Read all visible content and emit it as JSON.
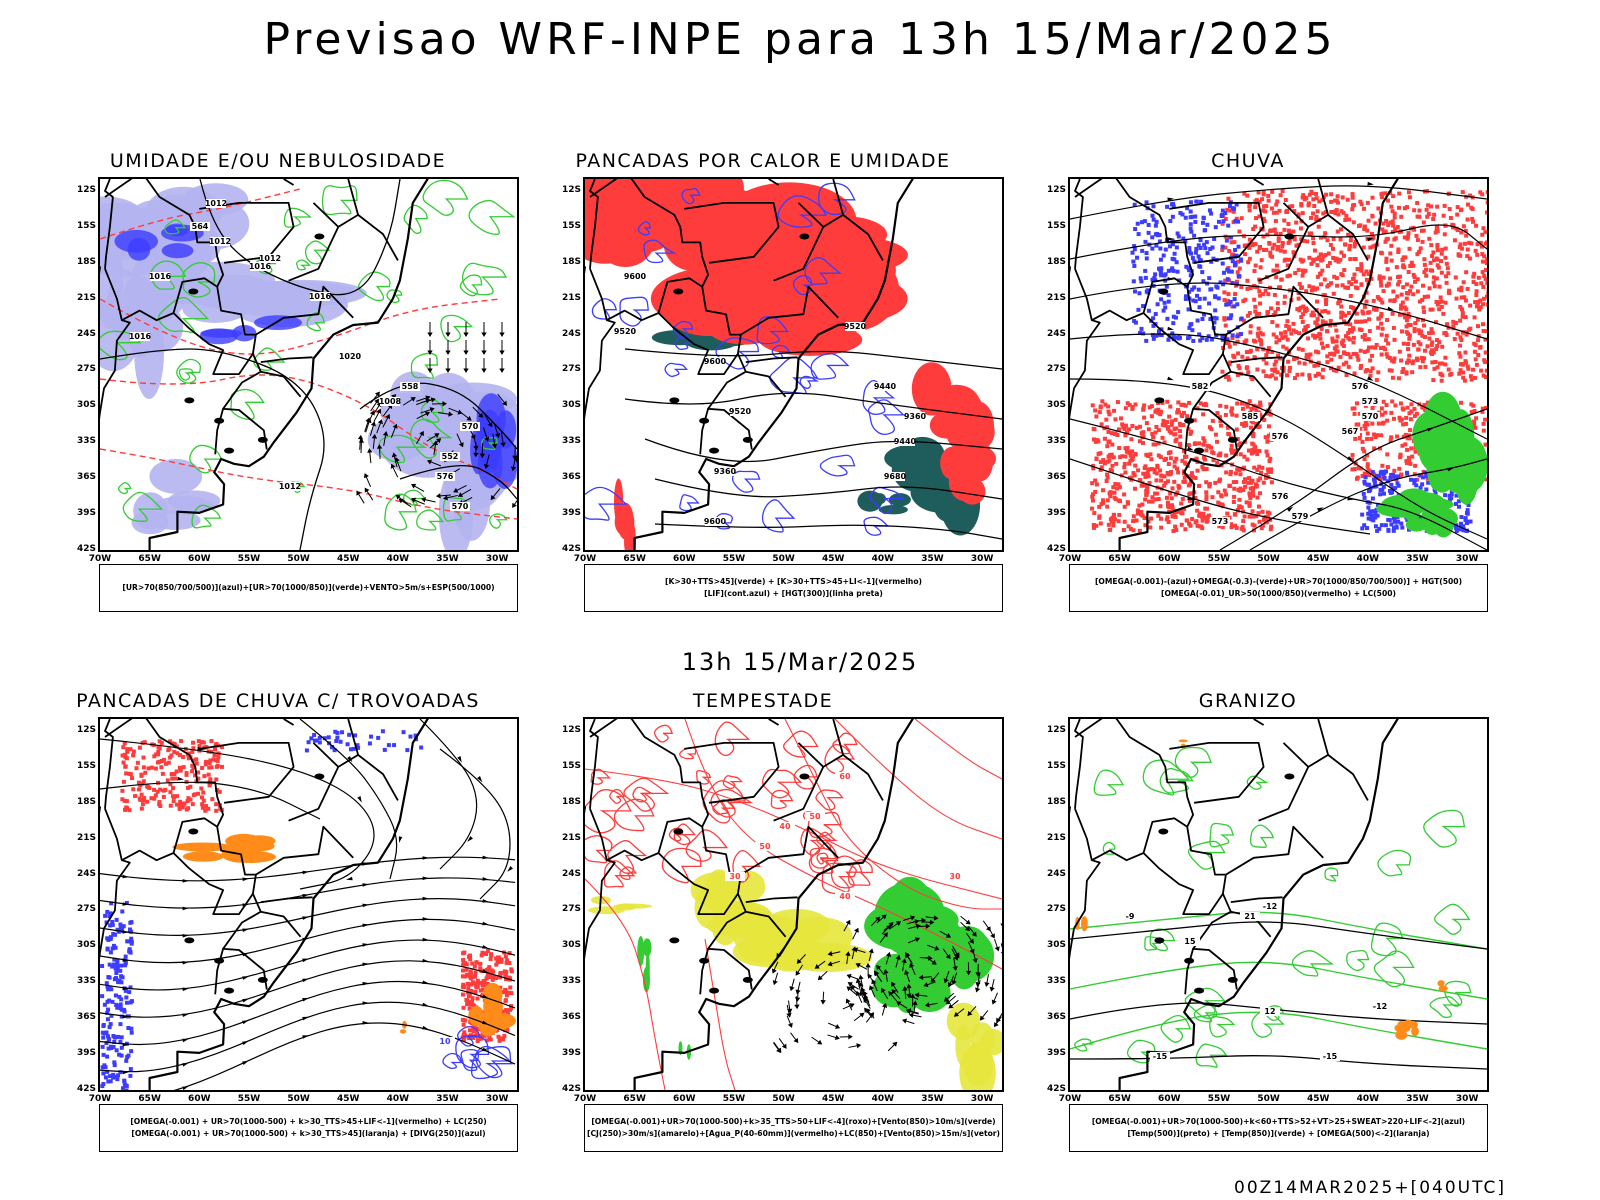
{
  "header": {
    "title": "Previsao WRF-INPE  para 13h 15/Mar/2025"
  },
  "subheader": {
    "title": "13h 15/Mar/2025"
  },
  "footer": {
    "run": "00Z14MAR2025+[040UTC]"
  },
  "axes": {
    "lat_ticks": [
      "12S",
      "15S",
      "18S",
      "21S",
      "24S",
      "27S",
      "30S",
      "33S",
      "36S",
      "39S",
      "42S"
    ],
    "lon_ticks": [
      "70W",
      "65W",
      "60W",
      "55W",
      "50W",
      "45W",
      "40W",
      "35W",
      "30W"
    ]
  },
  "colors": {
    "lightpurple": "#b4b4f0",
    "blue": "#3c3cff",
    "green": "#33cc33",
    "red": "#ff3c3c",
    "darkteal": "#1f5c5c",
    "orange": "#ff8c1a",
    "yellow": "#e6e63c",
    "black": "#000000"
  },
  "panels": [
    {
      "title": "UMIDADE E/OU NEBULOSIDADE",
      "legend": [
        "[UR>70(850/700/500)](azul)+[UR>70(1000/850)](verde)+VENTO>5m/s+ESP(500/1000)"
      ],
      "contour_labels": [
        "1012",
        "1012",
        "1012",
        "1016",
        "1016",
        "1016",
        "1016",
        "1020",
        "1012",
        "1008",
        "576",
        "570",
        "564",
        "558",
        "552",
        "570"
      ]
    },
    {
      "title": "PANCADAS POR CALOR E UMIDADE",
      "legend": [
        "[K>30+TTS>45](verde) + [K>30+TTS>45+LI<-1](vermelho)",
        "[LIF](cont.azul) + [HGT(300)](linha preta)"
      ],
      "contour_labels": [
        "9600",
        "9520",
        "9600",
        "9520",
        "9440",
        "9360",
        "9440",
        "9360",
        "9680",
        "9600",
        "9520"
      ]
    },
    {
      "title": "CHUVA",
      "legend": [
        "[OMEGA(-0.001)-(azul)+OMEGA(-0.3)-(verde)+UR>70(1000/850/700/500)] + HGT(500)",
        "[OMEGA(-0.01)_UR>50(1000/850)(vermelho) + LC(500)"
      ],
      "contour_labels": [
        "582",
        "585",
        "576",
        "573",
        "570",
        "567",
        "576",
        "579",
        "576",
        "573"
      ]
    },
    {
      "title": "PANCADAS DE CHUVA C/ TROVOADAS",
      "legend": [
        "[OMEGA(-0.001) + UR>70(1000-500) + k>30_TTS>45+LIF<-1](vermelho) + LC(250)",
        "[OMEGA(-0.001) + UR>70(1000-500) + k>30_TTS>45](laranja) + [DIVG(250)](azul)"
      ],
      "contour_labels": [
        "10"
      ]
    },
    {
      "title": "TEMPESTADE",
      "legend": [
        "[OMEGA(-0.001)+UR>70(1000-500)+k>35_TTS>50+LIF<-4](roxo)+[Vento(850)>10m/s](verde)",
        "[CJ(250)>30m/s](amarelo)+[Agua_P(40-60mm)](vermelho)+LC(850)+[Vento(850)>15m/s](vetor)"
      ],
      "contour_labels": [
        "60",
        "50",
        "40",
        "50",
        "30",
        "40",
        "30"
      ]
    },
    {
      "title": "GRANIZO",
      "legend": [
        "[OMEGA(-0.001)+UR>70(1000-500)+k<60+TTS>52+VT>25+SWEAT>220+LIF<-2](azul)",
        "[Temp(500)](preto) + [Temp(850)](verde) + [OMEGA(500)<-2](laranja)"
      ],
      "contour_labels": [
        "-9",
        "-12",
        "-12",
        "-15",
        "-15",
        "12",
        "15",
        "21"
      ]
    }
  ]
}
